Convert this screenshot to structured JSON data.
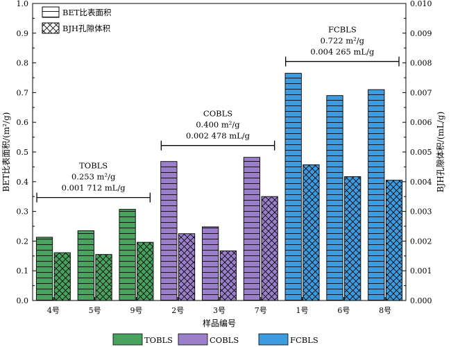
{
  "chart_data": {
    "type": "bar",
    "xlabel": "样品编号",
    "ylabel_left": "BET比表面积/(m²/g)",
    "ylabel_right": "BJH孔隙体积/(mL/g)",
    "ylim_left": [
      0,
      1.0
    ],
    "ylim_right": [
      0,
      0.01
    ],
    "yticks_left": [
      "0.0",
      "0.1",
      "0.2",
      "0.3",
      "0.4",
      "0.5",
      "0.6",
      "0.7",
      "0.8",
      "0.9",
      "1.0"
    ],
    "yticks_right": [
      "0.000",
      "0.001",
      "0.002",
      "0.003",
      "0.004",
      "0.005",
      "0.006",
      "0.007",
      "0.008",
      "0.009",
      "0.010"
    ],
    "categories": [
      "4号",
      "5号",
      "9号",
      "2号",
      "3号",
      "7号",
      "1号",
      "6号",
      "8号"
    ],
    "groups": [
      "TOBLS",
      "TOBLS",
      "TOBLS",
      "COBLS",
      "COBLS",
      "COBLS",
      "FCBLS",
      "FCBLS",
      "FCBLS"
    ],
    "series": [
      {
        "name": "BET比表面积",
        "axis": "left",
        "pattern": "horizontal-lines",
        "values": [
          0.213,
          0.235,
          0.307,
          0.468,
          0.248,
          0.482,
          0.765,
          0.69,
          0.71
        ]
      },
      {
        "name": "BJH孔隙体积",
        "axis": "right",
        "pattern": "crosshatch",
        "values": [
          0.00161,
          0.00155,
          0.00196,
          0.00225,
          0.00167,
          0.0035,
          0.00457,
          0.00417,
          0.00405
        ]
      }
    ],
    "group_annotations": [
      {
        "name": "TOBLS",
        "line1": "0.253 m²/g",
        "line2": "0.001 712 mL/g",
        "from": 0,
        "to": 2
      },
      {
        "name": "COBLS",
        "line1": "0.400 m²/g",
        "line2": "0.002 478 mL/g",
        "from": 3,
        "to": 5
      },
      {
        "name": "FCBLS",
        "line1": "0.722 m²/g",
        "line2": "0.004 265 mL/g",
        "from": 6,
        "to": 8
      }
    ],
    "colors": {
      "TOBLS": "#48a35f",
      "COBLS": "#9b7fcb",
      "FCBLS": "#3d9be0"
    },
    "legend_top": [
      "BET比表面积",
      "BJH孔隙体积"
    ],
    "legend_bottom": [
      "TOBLS",
      "COBLS",
      "FCBLS"
    ],
    "grid": false
  }
}
